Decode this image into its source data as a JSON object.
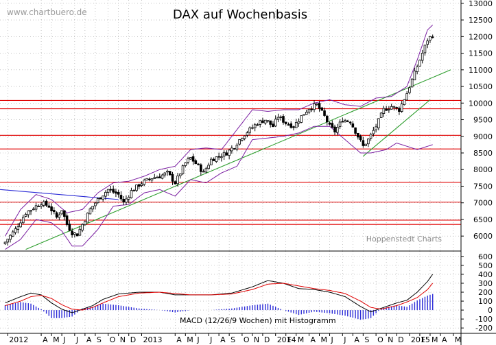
{
  "watermark": "www.chartbuero.de",
  "source_note": "Hoppenstedt Charts",
  "colors": {
    "background": "#ffffff",
    "price_candle": "#000000",
    "bollinger": "#7b1fa2",
    "horizontal_lines": "#e00000",
    "trend_green": "#2e9e2e",
    "trend_blue": "#2b2bd6",
    "macd_line": "#000000",
    "signal_line": "#e00000",
    "histogram": "#2b2bd6",
    "grid": "#a0a0a0"
  },
  "chart_data": [
    {
      "type": "candlestick",
      "title": "DAX auf Wochenbasis",
      "y_axis": {
        "position": "right",
        "ylim": [
          5550,
          13100
        ],
        "ticks": [
          "6000",
          "6500",
          "7000",
          "7500",
          "8000",
          "8500",
          "9000",
          "9500",
          "10000",
          "10500",
          "11000",
          "11500",
          "12000",
          "12500",
          "13000"
        ]
      },
      "grid": true,
      "weekly_close_path": [
        [
          0,
          5820
        ],
        [
          4,
          6200
        ],
        [
          8,
          6700
        ],
        [
          12,
          6900
        ],
        [
          14,
          7000
        ],
        [
          17,
          6900
        ],
        [
          20,
          6560
        ],
        [
          22,
          6800
        ],
        [
          24,
          6350
        ],
        [
          26,
          6100
        ],
        [
          28,
          6050
        ],
        [
          30,
          6350
        ],
        [
          33,
          6800
        ],
        [
          36,
          7100
        ],
        [
          40,
          7400
        ],
        [
          44,
          7250
        ],
        [
          46,
          7000
        ],
        [
          49,
          7350
        ],
        [
          53,
          7600
        ],
        [
          57,
          7750
        ],
        [
          60,
          7800
        ],
        [
          63,
          7900
        ],
        [
          66,
          7600
        ],
        [
          68,
          7900
        ],
        [
          70,
          8200
        ],
        [
          72,
          8350
        ],
        [
          75,
          8100
        ],
        [
          77,
          7900
        ],
        [
          80,
          8300
        ],
        [
          83,
          8400
        ],
        [
          86,
          8500
        ],
        [
          89,
          8700
        ],
        [
          92,
          9000
        ],
        [
          95,
          9200
        ],
        [
          98,
          9400
        ],
        [
          101,
          9500
        ],
        [
          104,
          9300
        ],
        [
          106,
          9600
        ],
        [
          109,
          9400
        ],
        [
          112,
          9300
        ],
        [
          115,
          9600
        ],
        [
          118,
          9850
        ],
        [
          121,
          9950
        ],
        [
          124,
          9600
        ],
        [
          126,
          9300
        ],
        [
          128,
          9150
        ],
        [
          131,
          9500
        ],
        [
          134,
          9450
        ],
        [
          137,
          9000
        ],
        [
          139,
          8700
        ],
        [
          141,
          8900
        ],
        [
          144,
          9300
        ],
        [
          147,
          9800
        ],
        [
          150,
          9900
        ],
        [
          153,
          9800
        ],
        [
          156,
          10300
        ],
        [
          159,
          10900
        ],
        [
          162,
          11500
        ],
        [
          164,
          11900
        ],
        [
          166,
          12050
        ]
      ],
      "bollinger_upper": [
        [
          0,
          6000
        ],
        [
          6,
          6800
        ],
        [
          12,
          7250
        ],
        [
          18,
          7100
        ],
        [
          24,
          6700
        ],
        [
          30,
          6800
        ],
        [
          36,
          7300
        ],
        [
          42,
          7600
        ],
        [
          48,
          7650
        ],
        [
          54,
          7800
        ],
        [
          60,
          8000
        ],
        [
          66,
          8100
        ],
        [
          72,
          8600
        ],
        [
          78,
          8650
        ],
        [
          84,
          8600
        ],
        [
          90,
          9200
        ],
        [
          96,
          9800
        ],
        [
          102,
          9750
        ],
        [
          108,
          9800
        ],
        [
          114,
          9800
        ],
        [
          120,
          10000
        ],
        [
          126,
          10100
        ],
        [
          132,
          9950
        ],
        [
          138,
          9900
        ],
        [
          144,
          10150
        ],
        [
          150,
          10200
        ],
        [
          156,
          10500
        ],
        [
          160,
          11300
        ],
        [
          164,
          12200
        ],
        [
          166,
          12350
        ]
      ],
      "bollinger_lower": [
        [
          0,
          5600
        ],
        [
          6,
          5900
        ],
        [
          12,
          6500
        ],
        [
          18,
          6400
        ],
        [
          22,
          6150
        ],
        [
          26,
          5700
        ],
        [
          30,
          5700
        ],
        [
          36,
          6200
        ],
        [
          42,
          6900
        ],
        [
          48,
          6950
        ],
        [
          54,
          7300
        ],
        [
          60,
          7400
        ],
        [
          66,
          7200
        ],
        [
          72,
          7700
        ],
        [
          78,
          7600
        ],
        [
          84,
          7900
        ],
        [
          90,
          8100
        ],
        [
          96,
          8900
        ],
        [
          102,
          8950
        ],
        [
          108,
          9000
        ],
        [
          114,
          9100
        ],
        [
          120,
          9300
        ],
        [
          126,
          9300
        ],
        [
          132,
          8900
        ],
        [
          138,
          8500
        ],
        [
          142,
          8500
        ],
        [
          148,
          8600
        ],
        [
          152,
          8800
        ],
        [
          156,
          8700
        ],
        [
          160,
          8600
        ],
        [
          166,
          8750
        ]
      ],
      "horizontal_levels": [
        6350,
        6480,
        7020,
        7620,
        8620,
        9030,
        9830,
        10080
      ],
      "trend_lines": [
        {
          "color": "green",
          "from": [
            8,
            5600
          ],
          "to": [
            173,
            11000
          ]
        },
        {
          "color": "green",
          "from": [
            139,
            8400
          ],
          "to": [
            165,
            10100
          ]
        },
        {
          "color": "blue",
          "from": [
            -2,
            7400
          ],
          "to": [
            44,
            7100
          ]
        }
      ]
    },
    {
      "type": "line",
      "label": "MACD (12/26/9 Wochen) mit Histogramm",
      "y_axis": {
        "position": "right",
        "ylim": [
          -260,
          660
        ],
        "ticks": [
          "-200",
          "-100",
          "0",
          "100",
          "200",
          "300",
          "400",
          "500",
          "600"
        ]
      },
      "series": [
        {
          "kind": "macd",
          "values": [
            [
              0,
              80
            ],
            [
              6,
              150
            ],
            [
              10,
              190
            ],
            [
              14,
              170
            ],
            [
              18,
              80
            ],
            [
              22,
              10
            ],
            [
              26,
              -30
            ],
            [
              30,
              10
            ],
            [
              34,
              50
            ],
            [
              38,
              120
            ],
            [
              44,
              180
            ],
            [
              52,
              200
            ],
            [
              60,
              200
            ],
            [
              66,
              170
            ],
            [
              72,
              170
            ],
            [
              80,
              170
            ],
            [
              88,
              190
            ],
            [
              96,
              260
            ],
            [
              102,
              330
            ],
            [
              108,
              300
            ],
            [
              114,
              240
            ],
            [
              120,
              230
            ],
            [
              126,
              200
            ],
            [
              132,
              150
            ],
            [
              138,
              40
            ],
            [
              142,
              -20
            ],
            [
              146,
              20
            ],
            [
              152,
              80
            ],
            [
              156,
              110
            ],
            [
              160,
              200
            ],
            [
              164,
              320
            ],
            [
              166,
              400
            ]
          ]
        },
        {
          "kind": "signal",
          "values": [
            [
              0,
              50
            ],
            [
              6,
              100
            ],
            [
              10,
              150
            ],
            [
              14,
              165
            ],
            [
              18,
              130
            ],
            [
              22,
              60
            ],
            [
              26,
              10
            ],
            [
              30,
              0
            ],
            [
              34,
              30
            ],
            [
              38,
              80
            ],
            [
              44,
              150
            ],
            [
              52,
              190
            ],
            [
              60,
              200
            ],
            [
              66,
              185
            ],
            [
              72,
              170
            ],
            [
              80,
              170
            ],
            [
              88,
              180
            ],
            [
              96,
              230
            ],
            [
              102,
              290
            ],
            [
              108,
              300
            ],
            [
              114,
              270
            ],
            [
              120,
              240
            ],
            [
              126,
              220
            ],
            [
              132,
              185
            ],
            [
              138,
              100
            ],
            [
              142,
              30
            ],
            [
              146,
              10
            ],
            [
              152,
              50
            ],
            [
              156,
              90
            ],
            [
              160,
              140
            ],
            [
              164,
              230
            ],
            [
              166,
              300
            ]
          ]
        }
      ],
      "histogram": "macd - signal"
    }
  ],
  "x_axis": {
    "labels": [
      {
        "week": 1,
        "text": "2012"
      },
      {
        "week": 14,
        "text": "A"
      },
      {
        "week": 18,
        "text": "M"
      },
      {
        "week": 22,
        "text": "J"
      },
      {
        "week": 27,
        "text": "J"
      },
      {
        "week": 31,
        "text": "A"
      },
      {
        "week": 35,
        "text": "S"
      },
      {
        "week": 40,
        "text": "O"
      },
      {
        "week": 44,
        "text": "N"
      },
      {
        "week": 48,
        "text": "D"
      },
      {
        "week": 53,
        "text": "2013"
      },
      {
        "week": 66,
        "text": "A"
      },
      {
        "week": 70,
        "text": "M"
      },
      {
        "week": 74,
        "text": "J"
      },
      {
        "week": 79,
        "text": "J"
      },
      {
        "week": 83,
        "text": "A"
      },
      {
        "week": 87,
        "text": "S"
      },
      {
        "week": 92,
        "text": "O"
      },
      {
        "week": 96,
        "text": "N"
      },
      {
        "week": 100,
        "text": "D"
      },
      {
        "week": 105,
        "text": "2014"
      },
      {
        "week": 109,
        "text": "F"
      },
      {
        "week": 113,
        "text": "M"
      },
      {
        "week": 118,
        "text": "A"
      },
      {
        "week": 122,
        "text": "M"
      },
      {
        "week": 126,
        "text": "J"
      },
      {
        "week": 131,
        "text": "J"
      },
      {
        "week": 135,
        "text": "A"
      },
      {
        "week": 139,
        "text": "S"
      },
      {
        "week": 144,
        "text": "O"
      },
      {
        "week": 148,
        "text": "N"
      },
      {
        "week": 152,
        "text": "D"
      },
      {
        "week": 157,
        "text": "2015"
      },
      {
        "week": 161,
        "text": "F"
      },
      {
        "week": 165,
        "text": "M"
      },
      {
        "week": 169,
        "text": "A"
      },
      {
        "week": 174,
        "text": "M"
      }
    ],
    "xlim": [
      -2,
      177
    ]
  }
}
